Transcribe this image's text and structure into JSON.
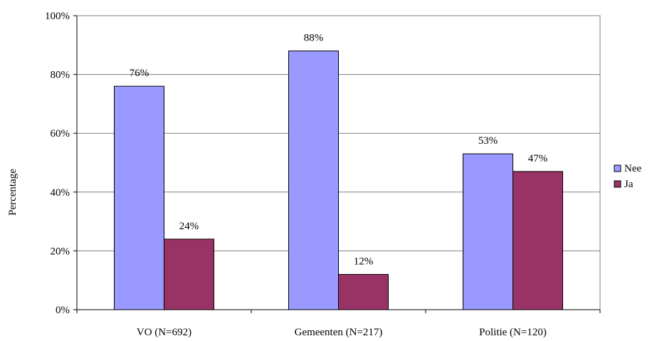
{
  "chart_data": {
    "type": "bar",
    "title": "",
    "xlabel": "",
    "ylabel": "Percentage",
    "categories": [
      "VO (N=692)",
      "Gemeenten (N=217)",
      "Politie (N=120)"
    ],
    "series": [
      {
        "name": "Nee",
        "color": "#9999ff",
        "values": [
          76,
          88,
          53
        ],
        "labels": [
          "76%",
          "88%",
          "53%"
        ]
      },
      {
        "name": "Ja",
        "color": "#993366",
        "values": [
          24,
          12,
          47
        ],
        "labels": [
          "24%",
          "12%",
          "47%"
        ]
      }
    ],
    "ylim": [
      0,
      100
    ],
    "yticks": [
      0,
      20,
      40,
      60,
      80,
      100
    ],
    "ytick_labels": [
      "0%",
      "20%",
      "40%",
      "60%",
      "80%",
      "100%"
    ],
    "grid": true,
    "legend_position": "right"
  }
}
